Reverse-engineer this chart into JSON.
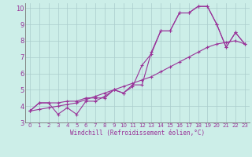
{
  "bg_color": "#cceee8",
  "grid_color": "#aacccc",
  "line_color": "#993399",
  "xlim": [
    -0.5,
    23.5
  ],
  "ylim": [
    3,
    10.3
  ],
  "xticks": [
    0,
    1,
    2,
    3,
    4,
    5,
    6,
    7,
    8,
    9,
    10,
    11,
    12,
    13,
    14,
    15,
    16,
    17,
    18,
    19,
    20,
    21,
    22,
    23
  ],
  "yticks": [
    3,
    4,
    5,
    6,
    7,
    8,
    9,
    10
  ],
  "xlabel": "Windchill (Refroidissement éolien,°C)",
  "line1_x": [
    0,
    1,
    2,
    3,
    4,
    5,
    6,
    7,
    8,
    9,
    10,
    11,
    12,
    13,
    14,
    15,
    16,
    17,
    18,
    19,
    20,
    21,
    22,
    23
  ],
  "line1_y": [
    3.7,
    4.2,
    4.2,
    4.2,
    4.3,
    4.3,
    4.5,
    4.5,
    4.5,
    5.0,
    4.8,
    5.3,
    5.3,
    7.3,
    8.6,
    8.6,
    9.7,
    9.7,
    10.1,
    10.1,
    9.0,
    7.6,
    8.5,
    7.8
  ],
  "line2_x": [
    0,
    1,
    2,
    3,
    4,
    5,
    6,
    7,
    8,
    9,
    10,
    11,
    12,
    13,
    14,
    15,
    16,
    17,
    18,
    19,
    20,
    21,
    22,
    23
  ],
  "line2_y": [
    3.7,
    4.2,
    4.2,
    3.5,
    3.9,
    3.5,
    4.3,
    4.3,
    4.6,
    5.0,
    4.8,
    5.2,
    6.5,
    7.2,
    8.6,
    8.6,
    9.7,
    9.7,
    10.1,
    10.1,
    9.0,
    7.6,
    8.5,
    7.8
  ],
  "line3_x": [
    0,
    1,
    2,
    3,
    4,
    5,
    6,
    7,
    8,
    9,
    10,
    11,
    12,
    13,
    14,
    15,
    16,
    17,
    18,
    19,
    20,
    21,
    22,
    23
  ],
  "line3_y": [
    3.7,
    3.8,
    3.9,
    4.0,
    4.1,
    4.2,
    4.4,
    4.6,
    4.8,
    5.0,
    5.2,
    5.4,
    5.6,
    5.8,
    6.1,
    6.4,
    6.7,
    7.0,
    7.3,
    7.6,
    7.8,
    7.9,
    8.0,
    7.8
  ],
  "tick_fontsize_x": 5.0,
  "tick_fontsize_y": 6.0,
  "xlabel_fontsize": 5.5,
  "linewidth": 0.8,
  "markersize": 3.0
}
